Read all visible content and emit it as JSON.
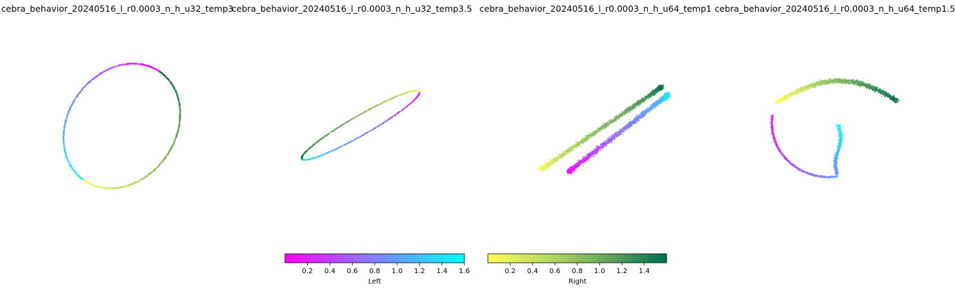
{
  "chart_data": {
    "type": "scatter",
    "description_kind": "3D embedding point clouds colored by position",
    "panels": [
      {
        "title": "cebra_behavior_20240516_l_r0.0003_n_h_u32_temp3",
        "shape": "ellipse"
      },
      {
        "title": "cebra_behavior_20240516_l_r0.0003_n_h_u32_temp3.5",
        "shape": "thin-ellipse"
      },
      {
        "title": "cebra_behavior_20240516_l_r0.0003_n_h_u64_temp1",
        "shape": "double-arc"
      },
      {
        "title": "cebra_behavior_20240516_l_r0.0003_n_h_u64_temp1.5",
        "shape": "loop-with-tail"
      }
    ],
    "colorbars": [
      {
        "label": "Left",
        "range": [
          0,
          1.6
        ],
        "ticks": [
          "0.2",
          "0.4",
          "0.6",
          "0.8",
          "1.0",
          "1.2",
          "1.4",
          "1.6"
        ],
        "tick_values": [
          0.2,
          0.4,
          0.6,
          0.8,
          1.0,
          1.2,
          1.4,
          1.6
        ],
        "colors": [
          "#ff00ff",
          "#00ffff"
        ]
      },
      {
        "label": "Right",
        "range": [
          0,
          1.6
        ],
        "ticks": [
          "0.2",
          "0.4",
          "0.6",
          "0.8",
          "1.0",
          "1.2",
          "1.4"
        ],
        "tick_values": [
          0.2,
          0.4,
          0.6,
          0.8,
          1.0,
          1.2,
          1.4
        ],
        "colors": [
          "#ffff55",
          "#006e52"
        ]
      }
    ]
  }
}
